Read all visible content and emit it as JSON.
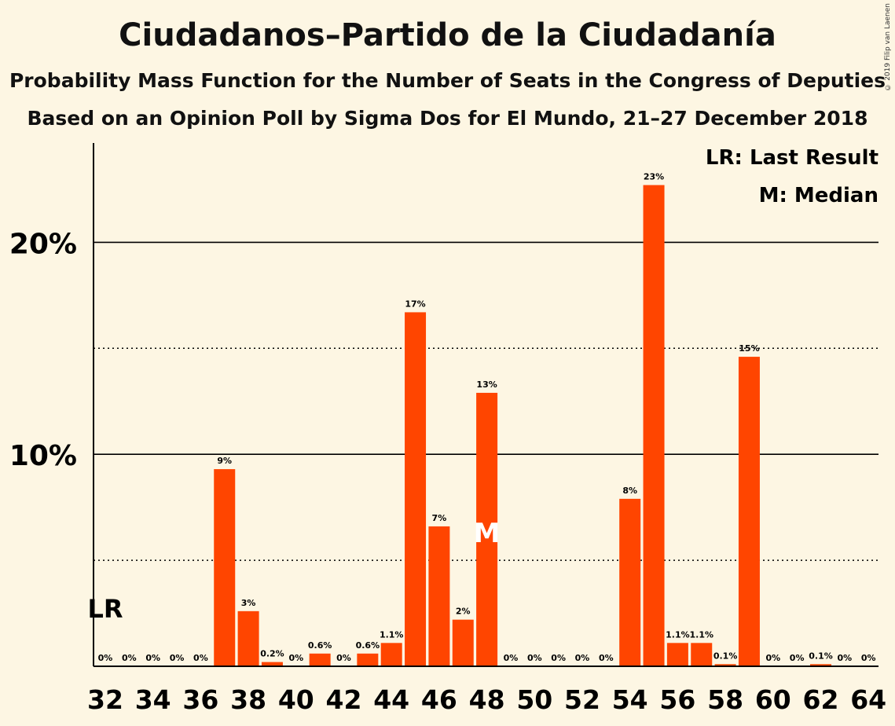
{
  "title": "Ciudadanos–Partido de la Ciudadanía",
  "subtitle_1": "Probability Mass Function for the Number of Seats in the Congress of Deputies",
  "subtitle_2": "Based on an Opinion Poll by Sigma Dos for El Mundo, 21–27 December 2018",
  "copyright": "© 2019 Filip van Laenen",
  "legend": {
    "last_result": "LR: Last Result",
    "median": "M: Median"
  },
  "colors": {
    "bar": "#ff4500",
    "background": "#fdf6e3",
    "axis": "#000000"
  },
  "chart_data": {
    "type": "bar",
    "title": "Ciudadanos–Partido de la Ciudadanía",
    "xlabel": "",
    "ylabel": "",
    "ylim": [
      0,
      24.5
    ],
    "grid": "solid lines at 10% and 20%, dotted lines at 5% and 15%",
    "legend_placement": "top-right",
    "y_ticks": [
      "10%",
      "20%"
    ],
    "x_tick_labels": [
      "32",
      "34",
      "36",
      "38",
      "40",
      "42",
      "44",
      "46",
      "48",
      "50",
      "52",
      "54",
      "56",
      "58",
      "60",
      "62",
      "64"
    ],
    "categories": [
      32,
      33,
      34,
      35,
      36,
      37,
      38,
      39,
      40,
      41,
      42,
      43,
      44,
      45,
      46,
      47,
      48,
      49,
      50,
      51,
      52,
      53,
      54,
      55,
      56,
      57,
      58,
      59,
      60,
      61,
      62,
      63,
      64
    ],
    "values": [
      0,
      0,
      0,
      0,
      0,
      9.3,
      2.6,
      0.2,
      0,
      0.6,
      0,
      0.6,
      1.1,
      16.7,
      6.6,
      2.2,
      12.9,
      0,
      0,
      0,
      0,
      0,
      7.9,
      22.7,
      1.1,
      1.1,
      0.1,
      14.6,
      0,
      0,
      0.1,
      0,
      0
    ],
    "value_labels": [
      "0%",
      "0%",
      "0%",
      "0%",
      "0%",
      "9%",
      "3%",
      "0.2%",
      "0%",
      "0.6%",
      "0%",
      "0.6%",
      "1.1%",
      "17%",
      "7%",
      "2%",
      "13%",
      "0%",
      "0%",
      "0%",
      "0%",
      "0%",
      "8%",
      "23%",
      "1.1%",
      "1.1%",
      "0.1%",
      "15%",
      "0%",
      "0%",
      "0.1%",
      "0%",
      "0%"
    ],
    "last_result": {
      "seats": 32,
      "label": "LR"
    },
    "median": {
      "seats": 48,
      "label": "M"
    }
  }
}
